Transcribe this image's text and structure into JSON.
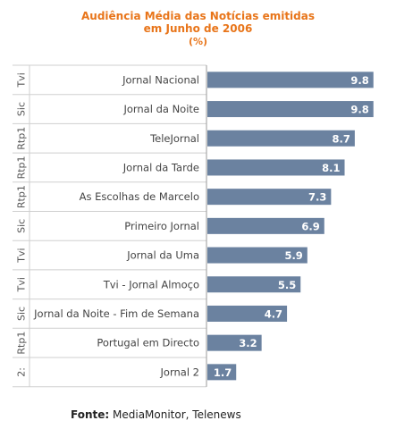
{
  "chart_data": {
    "type": "bar",
    "orientation": "horizontal",
    "title": [
      "Audiência Média das Notícias emitidas",
      "em Junho de 2006",
      "(%)"
    ],
    "categories": [
      "Jornal Nacional",
      "Jornal da Noite",
      "TeleJornal",
      "Jornal da Tarde",
      "As Escolhas de Marcelo",
      "Primeiro Jornal",
      "Jornal da Uma",
      "Tvi - Jornal Almoço",
      "Jornal da Noite - Fim de Semana",
      "Portugal em Directo",
      "Jornal 2"
    ],
    "channels": [
      "Tvi",
      "Sic",
      "Rtp1",
      "Rtp1",
      "Rtp1",
      "Sic",
      "Tvi",
      "Tvi",
      "Sic",
      "Rtp1",
      "2:"
    ],
    "values": [
      9.8,
      9.8,
      8.7,
      8.1,
      7.3,
      6.9,
      5.9,
      5.5,
      4.7,
      3.2,
      1.7
    ],
    "xlim": [
      0,
      10.5
    ],
    "bar_color": "#6b82a0",
    "label_color": "#ffffff",
    "grid": false
  },
  "title_color": "#e8751a",
  "footer": {
    "label": "Fonte:",
    "text": "MediaMonitor, Telenews"
  }
}
